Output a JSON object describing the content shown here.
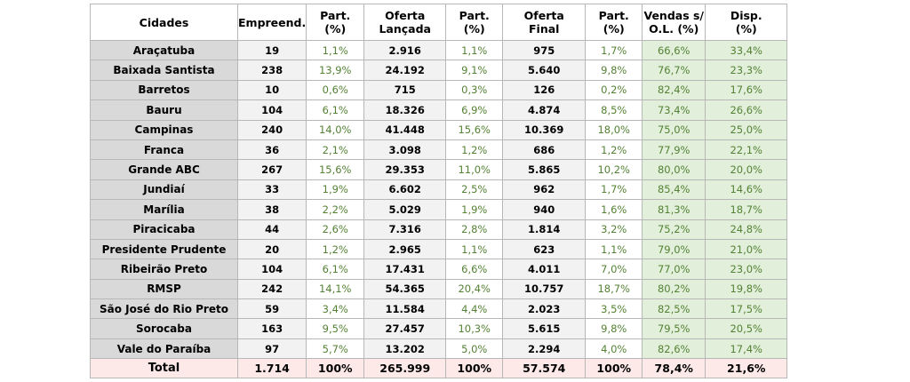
{
  "headers": [
    [
      "Cidades"
    ],
    [
      "Empreend."
    ],
    [
      "Part.",
      "(%)"
    ],
    [
      "Oferta",
      "Lançada"
    ],
    [
      "Part.",
      "(%)"
    ],
    [
      "Oferta",
      "Final"
    ],
    [
      "Part.",
      "(%)"
    ],
    [
      "Vendas s/",
      "O.L. (%)"
    ],
    [
      "Disp.",
      "(%)"
    ]
  ],
  "rows": [
    [
      "Araçatuba",
      "19",
      "1,1%",
      "2.916",
      "1,1%",
      "975",
      "1,7%",
      "66,6%",
      "33,4%"
    ],
    [
      "Baixada Santista",
      "238",
      "13,9%",
      "24.192",
      "9,1%",
      "5.640",
      "9,8%",
      "76,7%",
      "23,3%"
    ],
    [
      "Barretos",
      "10",
      "0,6%",
      "715",
      "0,3%",
      "126",
      "0,2%",
      "82,4%",
      "17,6%"
    ],
    [
      "Bauru",
      "104",
      "6,1%",
      "18.326",
      "6,9%",
      "4.874",
      "8,5%",
      "73,4%",
      "26,6%"
    ],
    [
      "Campinas",
      "240",
      "14,0%",
      "41.448",
      "15,6%",
      "10.369",
      "18,0%",
      "75,0%",
      "25,0%"
    ],
    [
      "Franca",
      "36",
      "2,1%",
      "3.098",
      "1,2%",
      "686",
      "1,2%",
      "77,9%",
      "22,1%"
    ],
    [
      "Grande ABC",
      "267",
      "15,6%",
      "29.353",
      "11,0%",
      "5.865",
      "10,2%",
      "80,0%",
      "20,0%"
    ],
    [
      "Jundiaí",
      "33",
      "1,9%",
      "6.602",
      "2,5%",
      "962",
      "1,7%",
      "85,4%",
      "14,6%"
    ],
    [
      "Marília",
      "38",
      "2,2%",
      "5.029",
      "1,9%",
      "940",
      "1,6%",
      "81,3%",
      "18,7%"
    ],
    [
      "Piracicaba",
      "44",
      "2,6%",
      "7.316",
      "2,8%",
      "1.814",
      "3,2%",
      "75,2%",
      "24,8%"
    ],
    [
      "Presidente Prudente",
      "20",
      "1,2%",
      "2.965",
      "1,1%",
      "623",
      "1,1%",
      "79,0%",
      "21,0%"
    ],
    [
      "Ribeirão Preto",
      "104",
      "6,1%",
      "17.431",
      "6,6%",
      "4.011",
      "7,0%",
      "77,0%",
      "23,0%"
    ],
    [
      "RMSP",
      "242",
      "14,1%",
      "54.365",
      "20,4%",
      "10.757",
      "18,7%",
      "80,2%",
      "19,8%"
    ],
    [
      "São José do Rio Preto",
      "59",
      "3,4%",
      "11.584",
      "4,4%",
      "2.023",
      "3,5%",
      "82,5%",
      "17,5%"
    ],
    [
      "Sorocaba",
      "163",
      "9,5%",
      "27.457",
      "10,3%",
      "5.615",
      "9,8%",
      "79,5%",
      "20,5%"
    ],
    [
      "Vale do Paraíba",
      "97",
      "5,7%",
      "13.202",
      "5,0%",
      "2.294",
      "4,0%",
      "82,6%",
      "17,4%"
    ]
  ],
  "total": [
    "Total",
    "1.714",
    "100%",
    "265.999",
    "100%",
    "57.574",
    "100%",
    "78,4%",
    "21,6%"
  ],
  "colors": {
    "city_bg": "#d9d9d9",
    "alt_bg": "#f2f2f2",
    "green_bg": "#e2efda",
    "pct_text": "#548235",
    "total_bg": "#fde9e7",
    "border": "#b7b7b7"
  }
}
